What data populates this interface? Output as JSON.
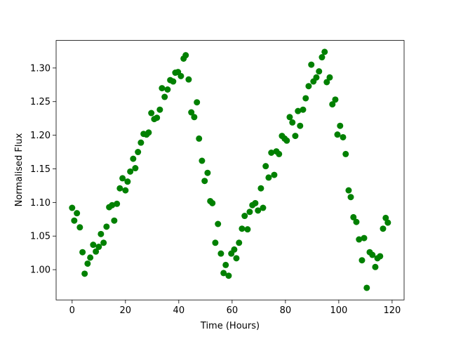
{
  "chart_data": {
    "type": "scatter",
    "xlabel": "Time (Hours)",
    "ylabel": "Normalised Flux",
    "color": "#008000",
    "xlim": [
      -6,
      124.5
    ],
    "ylim": [
      0.955,
      1.341
    ],
    "xticks": [
      0,
      20,
      40,
      60,
      80,
      100,
      120
    ],
    "yticks": [
      {
        "value": 1,
        "label": "1.00"
      },
      1.05,
      {
        "value": 1.1,
        "label": "1.10"
      },
      1.15,
      {
        "value": 1.2,
        "label": "1.20"
      },
      1.25,
      {
        "value": 1.3,
        "label": "1.30"
      }
    ],
    "x": [
      0,
      0.8,
      1.8,
      2.9,
      3.9,
      4.7,
      5.8,
      6.8,
      7.9,
      8.9,
      10,
      10.8,
      11.8,
      12.9,
      13.9,
      15,
      15.8,
      16.8,
      17.9,
      18.9,
      20,
      20.8,
      21.8,
      22.9,
      23.7,
      24.7,
      25.8,
      26.8,
      27.9,
      28.7,
      29.7,
      30.8,
      31.8,
      32.9,
      33.7,
      34.7,
      35.8,
      36.8,
      37.9,
      38.7,
      39.7,
      40.8,
      41.8,
      42.6,
      43.7,
      44.7,
      45.8,
      46.8,
      47.6,
      48.7,
      49.7,
      50.8,
      51.8,
      52.6,
      53.7,
      54.7,
      55.8,
      56.8,
      57.6,
      58.7,
      59.7,
      60.8,
      61.6,
      62.6,
      63.7,
      64.7,
      65.8,
      66.6,
      67.6,
      68.7,
      69.7,
      70.8,
      71.6,
      72.6,
      73.7,
      74.7,
      75.8,
      76.6,
      77.6,
      78.7,
      79.7,
      80.5,
      81.6,
      82.6,
      83.7,
      84.7,
      85.5,
      86.6,
      87.6,
      88.7,
      89.7,
      90.5,
      91.6,
      92.6,
      93.7,
      94.7,
      95.5,
      96.6,
      97.6,
      98.7,
      99.5,
      100.5,
      101.6,
      102.6,
      103.7,
      104.5,
      105.5,
      106.6,
      107.6,
      108.7,
      109.5,
      110.5,
      111.6,
      112.6,
      113.7,
      114.5,
      115.5,
      116.6,
      117.6,
      118.4
    ],
    "values": [
      1.092,
      1.073,
      1.084,
      1.063,
      1.026,
      0.994,
      1.009,
      1.018,
      1.037,
      1.027,
      1.034,
      1.053,
      1.04,
      1.064,
      1.093,
      1.096,
      1.073,
      1.098,
      1.121,
      1.136,
      1.118,
      1.131,
      1.146,
      1.165,
      1.151,
      1.175,
      1.189,
      1.202,
      1.201,
      1.204,
      1.233,
      1.224,
      1.226,
      1.238,
      1.27,
      1.257,
      1.268,
      1.282,
      1.28,
      1.293,
      1.294,
      1.288,
      1.314,
      1.319,
      1.283,
      1.234,
      1.227,
      1.249,
      1.195,
      1.162,
      1.132,
      1.144,
      1.102,
      1.099,
      1.04,
      1.068,
      1.024,
      0.995,
      1.007,
      0.991,
      1.024,
      1.03,
      1.017,
      1.04,
      1.061,
      1.08,
      1.06,
      1.086,
      1.096,
      1.099,
      1.088,
      1.121,
      1.092,
      1.154,
      1.137,
      1.174,
      1.141,
      1.176,
      1.172,
      1.199,
      1.195,
      1.192,
      1.227,
      1.219,
      1.199,
      1.236,
      1.214,
      1.238,
      1.255,
      1.273,
      1.305,
      1.28,
      1.286,
      1.295,
      1.316,
      1.324,
      1.279,
      1.286,
      1.246,
      1.253,
      1.201,
      1.214,
      1.197,
      1.172,
      1.118,
      1.108,
      1.078,
      1.071,
      1.045,
      1.014,
      1.047,
      0.973,
      1.026,
      1.022,
      1.004,
      1.017,
      1.02,
      1.061,
      1.077,
      1.07
    ]
  }
}
